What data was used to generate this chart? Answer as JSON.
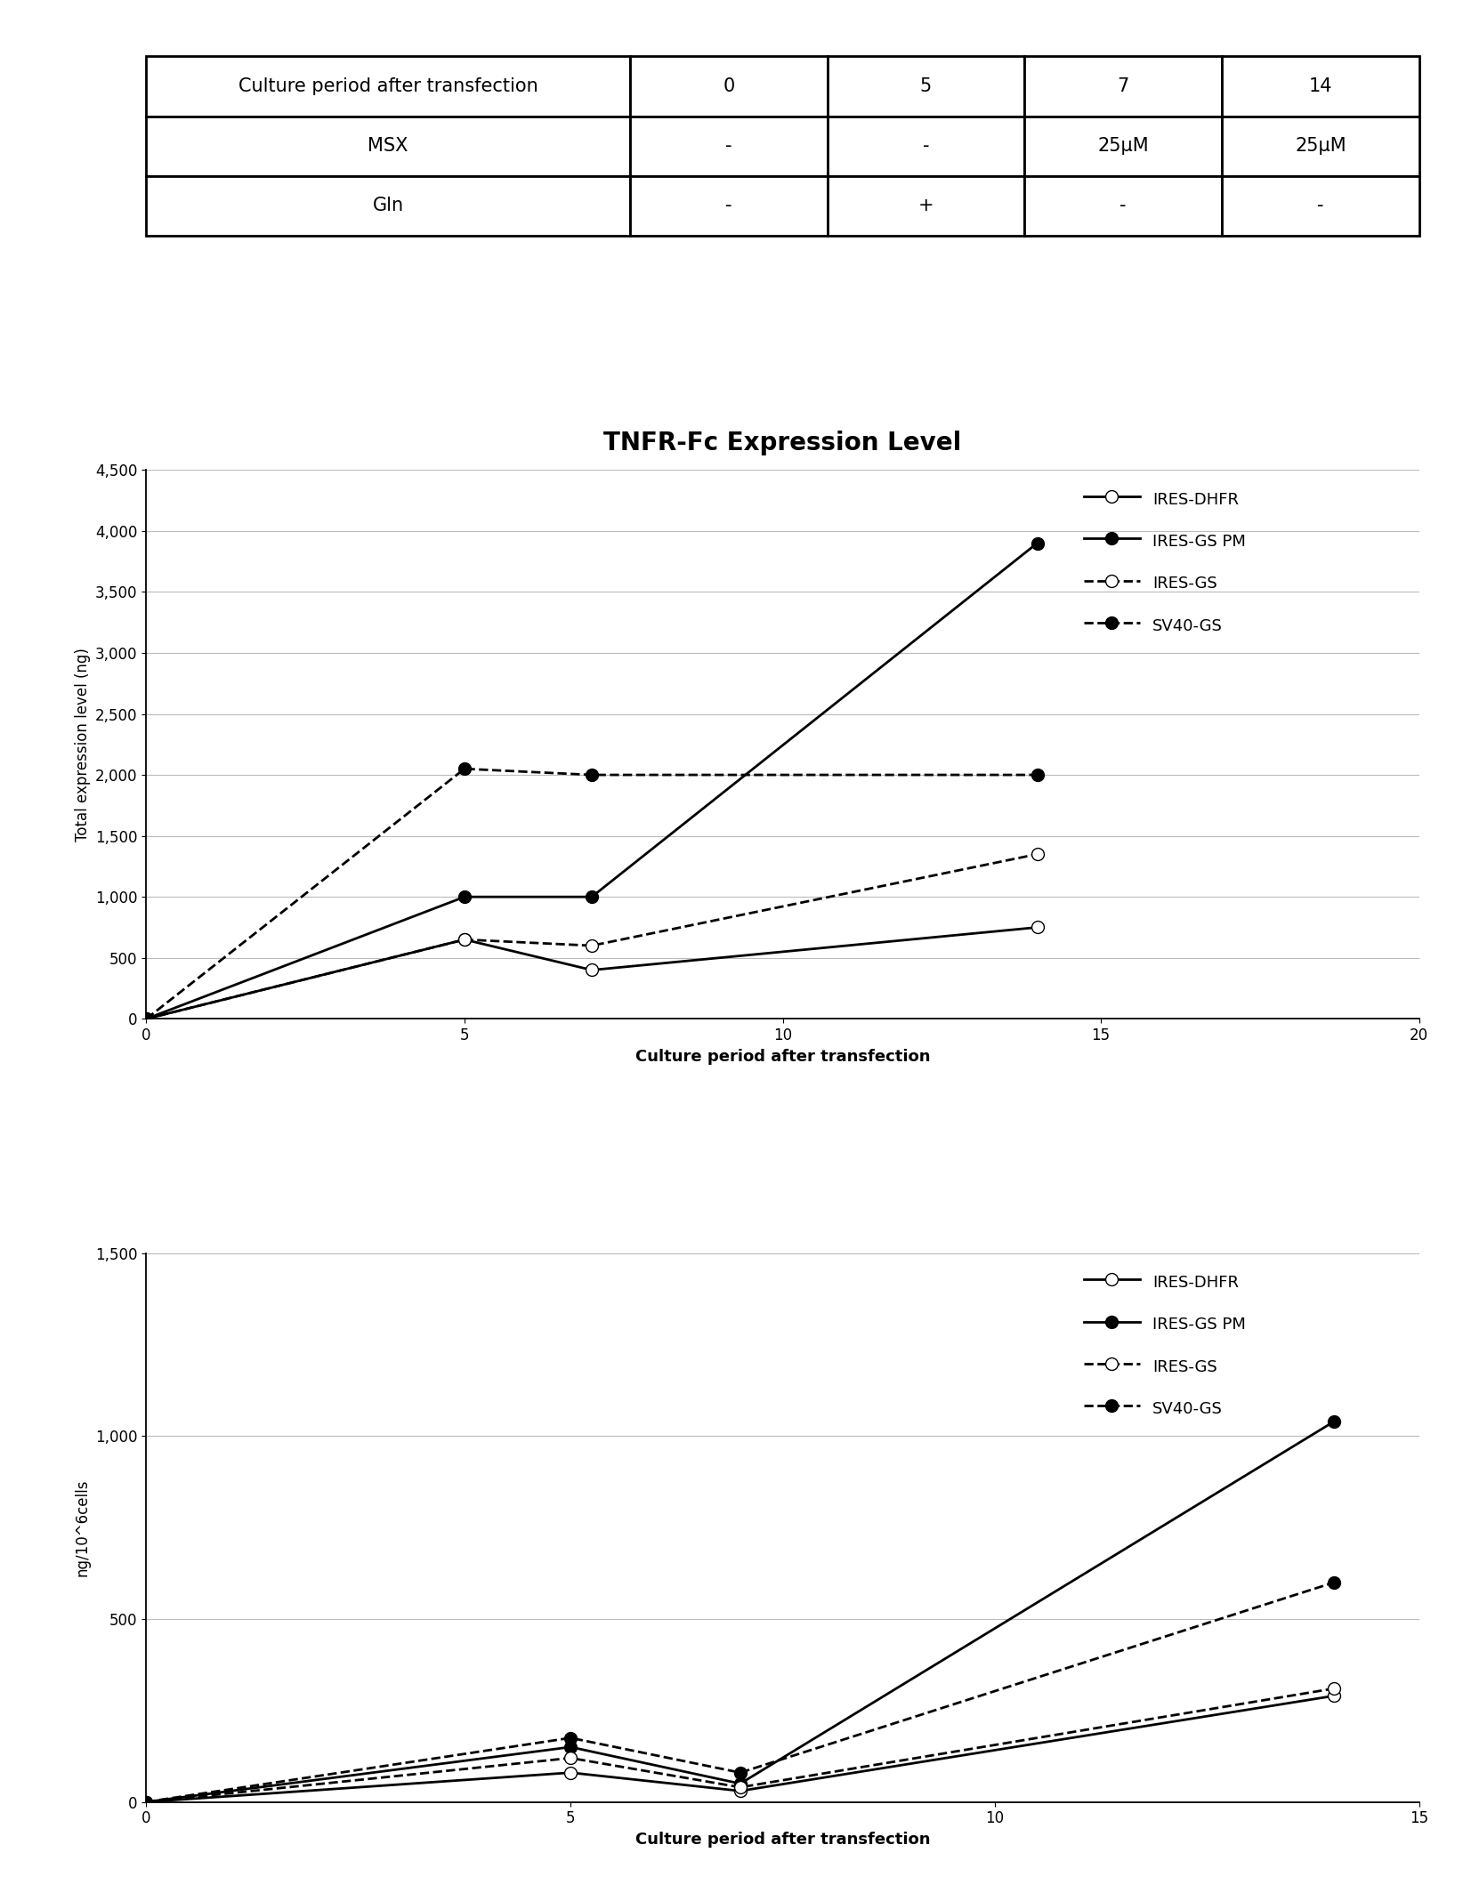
{
  "table": {
    "headers": [
      "Culture period after transfection",
      "0",
      "5",
      "7",
      "14"
    ],
    "rows": [
      [
        "MSX",
        "-",
        "-",
        "25μM",
        "25μM"
      ],
      [
        "Gln",
        "-",
        "+",
        "-",
        "-"
      ]
    ]
  },
  "chart_title": "TNFR-Fc Expression Level",
  "chart1": {
    "ylabel": "Total expression level (ng)",
    "xlabel": "Culture period after transfection",
    "xlim": [
      0,
      20
    ],
    "ylim": [
      0,
      4500
    ],
    "yticks": [
      0,
      500,
      1000,
      1500,
      2000,
      2500,
      3000,
      3500,
      4000,
      4500
    ],
    "ytick_labels": [
      "0",
      "500",
      "1,000",
      "1,500",
      "2,000",
      "2,500",
      "3,000",
      "3,500",
      "4,000",
      "4,500"
    ],
    "xticks": [
      0,
      5,
      10,
      15,
      20
    ],
    "series": [
      {
        "label": "IRES-DHFR",
        "x": [
          0,
          5,
          7,
          14
        ],
        "y": [
          0,
          650,
          400,
          750
        ],
        "linestyle": "solid",
        "marker": "open_circle",
        "color": "#000000"
      },
      {
        "label": "IRES-GS PM",
        "x": [
          0,
          5,
          7,
          14
        ],
        "y": [
          0,
          1000,
          1000,
          3900
        ],
        "linestyle": "solid",
        "marker": "filled_circle",
        "color": "#000000"
      },
      {
        "label": "IRES-GS",
        "x": [
          0,
          5,
          7,
          14
        ],
        "y": [
          0,
          650,
          600,
          1350
        ],
        "linestyle": "dashed",
        "marker": "open_circle",
        "color": "#000000"
      },
      {
        "label": "SV40-GS",
        "x": [
          0,
          5,
          7,
          14
        ],
        "y": [
          0,
          2050,
          2000,
          2000
        ],
        "linestyle": "dashed",
        "marker": "filled_circle",
        "color": "#000000"
      }
    ]
  },
  "chart2": {
    "ylabel": "ng/10^6cells",
    "xlabel": "Culture period after transfection",
    "xlim": [
      0,
      15
    ],
    "ylim": [
      0,
      1500
    ],
    "yticks": [
      0,
      500,
      1000,
      1500
    ],
    "ytick_labels": [
      "0",
      "500",
      "1,000",
      "1,500"
    ],
    "xticks": [
      0,
      5,
      10,
      15
    ],
    "series": [
      {
        "label": "IRES-DHFR",
        "x": [
          0,
          5,
          7,
          14
        ],
        "y": [
          0,
          80,
          30,
          290
        ],
        "linestyle": "solid",
        "marker": "open_circle",
        "color": "#000000"
      },
      {
        "label": "IRES-GS PM",
        "x": [
          0,
          5,
          7,
          14
        ],
        "y": [
          0,
          150,
          50,
          1040
        ],
        "linestyle": "solid",
        "marker": "filled_circle",
        "color": "#000000"
      },
      {
        "label": "IRES-GS",
        "x": [
          0,
          5,
          7,
          14
        ],
        "y": [
          0,
          120,
          40,
          310
        ],
        "linestyle": "dashed",
        "marker": "open_circle",
        "color": "#000000"
      },
      {
        "label": "SV40-GS",
        "x": [
          0,
          5,
          7,
          14
        ],
        "y": [
          0,
          175,
          80,
          600
        ],
        "linestyle": "dashed",
        "marker": "filled_circle",
        "color": "#000000"
      }
    ]
  },
  "background_color": "#ffffff",
  "line_color": "#000000",
  "grid_color": "#bbbbbb",
  "fontsize_title": 20,
  "fontsize_label": 13,
  "fontsize_tick": 12,
  "fontsize_legend": 13,
  "fontsize_table": 15
}
